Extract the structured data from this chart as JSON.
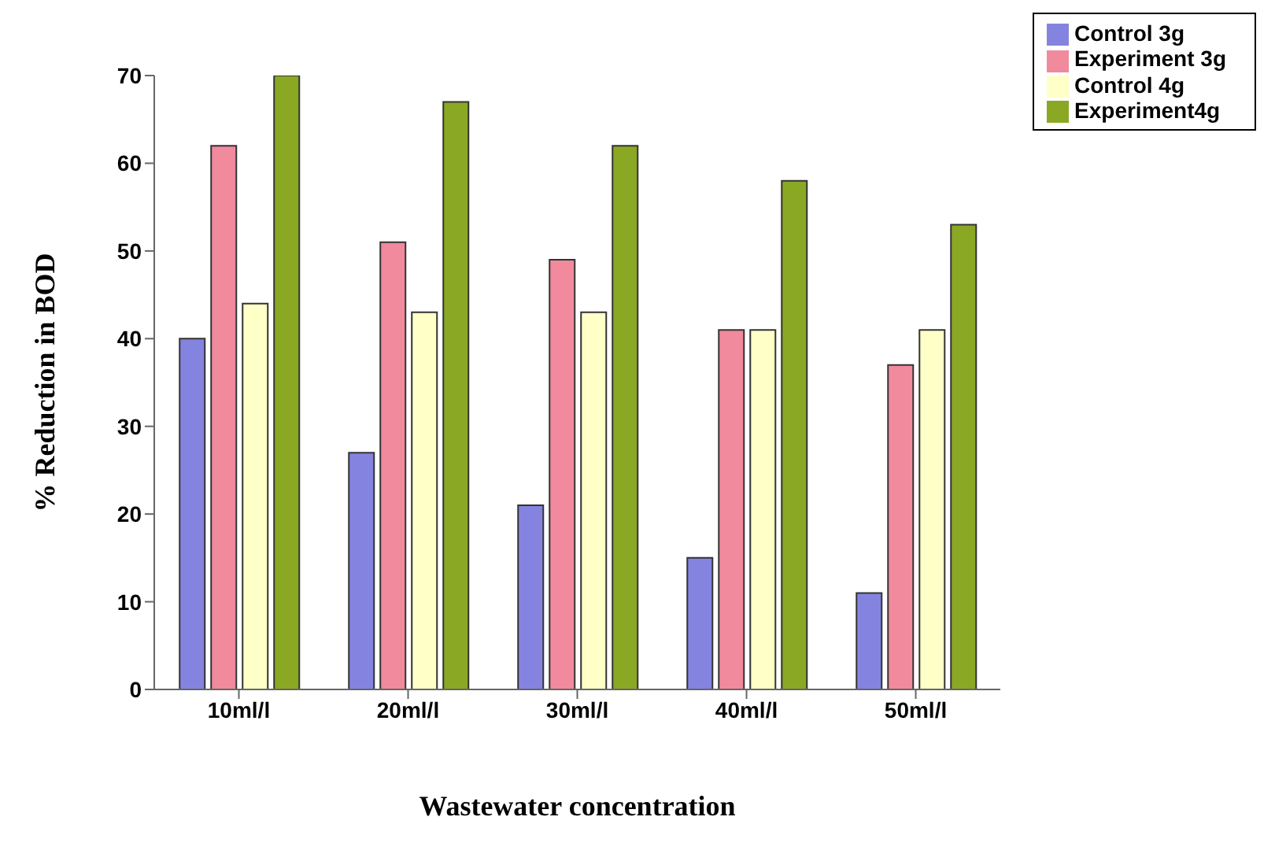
{
  "chart_data": {
    "type": "bar",
    "xlabel": "Wastewater concentration",
    "ylabel": "% Reduction in BOD",
    "categories": [
      "10ml/l",
      "20ml/l",
      "30ml/l",
      "40ml/l",
      "50ml/l"
    ],
    "series": [
      {
        "name": "Control 3g",
        "color": "#8484e0",
        "values": [
          40,
          27,
          21,
          15,
          11
        ]
      },
      {
        "name": "Experiment 3g",
        "color": "#f08a9c",
        "values": [
          62,
          51,
          49,
          41,
          37
        ]
      },
      {
        "name": "Control 4g",
        "color": "#ffffc8",
        "values": [
          44,
          43,
          43,
          41,
          41
        ]
      },
      {
        "name": "Experiment4g",
        "color": "#8aa824",
        "values": [
          70,
          67,
          62,
          58,
          53
        ]
      }
    ],
    "ylim": [
      0,
      70
    ],
    "yticks": [
      0,
      10,
      20,
      30,
      40,
      50,
      60,
      70
    ],
    "legend": "top right"
  }
}
